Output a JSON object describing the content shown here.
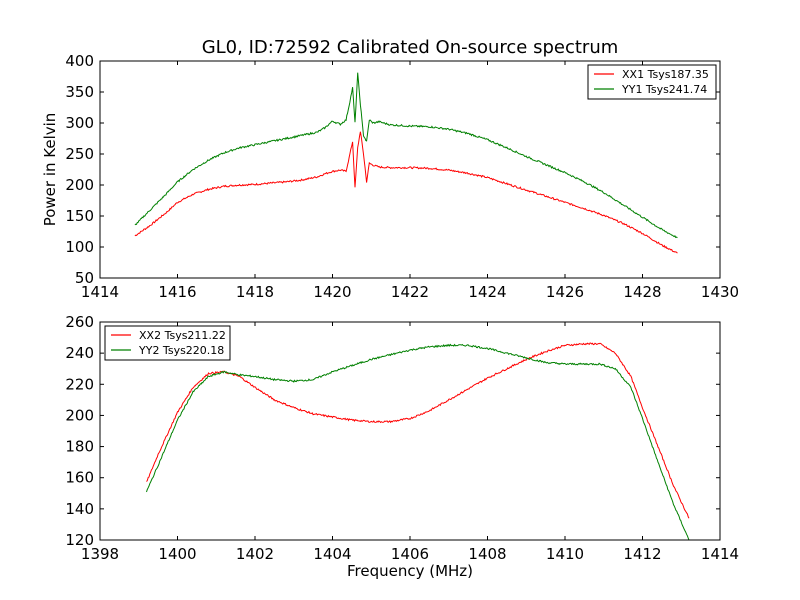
{
  "figure_title": "GL0, ID:72592 Calibrated On-source spectrum",
  "chart_data": [
    {
      "type": "line",
      "title": "GL0, ID:72592 Calibrated On-source spectrum",
      "xlabel": "",
      "ylabel": "Power in Kelvin",
      "xlim": [
        1414,
        1430
      ],
      "ylim": [
        50,
        400
      ],
      "xticks": [
        "1414",
        "1416",
        "1418",
        "1420",
        "1422",
        "1424",
        "1426",
        "1428",
        "1430"
      ],
      "yticks": [
        "50",
        "100",
        "150",
        "200",
        "250",
        "300",
        "350",
        "400"
      ],
      "legend_position": "top-right",
      "grid": false,
      "series": [
        {
          "name": "XX1 Tsys187.35",
          "color": "#ff0000",
          "x": [
            1414.9,
            1415.3,
            1415.7,
            1416.0,
            1416.4,
            1416.8,
            1417.2,
            1417.6,
            1418.0,
            1418.4,
            1418.8,
            1419.2,
            1419.6,
            1419.8,
            1420.0,
            1420.2,
            1420.35,
            1420.45,
            1420.52,
            1420.58,
            1420.65,
            1420.72,
            1420.8,
            1420.88,
            1420.95,
            1421.05,
            1421.2,
            1421.5,
            1422.0,
            1422.5,
            1423.0,
            1423.5,
            1424.0,
            1424.5,
            1425.0,
            1425.5,
            1426.0,
            1426.5,
            1427.0,
            1427.5,
            1428.0,
            1428.5,
            1428.9
          ],
          "y": [
            118,
            135,
            155,
            172,
            185,
            193,
            198,
            200,
            201,
            203,
            205,
            208,
            213,
            218,
            222,
            224,
            222,
            250,
            270,
            195,
            260,
            287,
            250,
            205,
            235,
            232,
            229,
            228,
            228,
            227,
            224,
            219,
            212,
            202,
            192,
            182,
            172,
            162,
            151,
            138,
            122,
            103,
            90
          ]
        },
        {
          "name": "YY1 Tsys241.74",
          "color": "#008000",
          "x": [
            1414.9,
            1415.3,
            1415.7,
            1416.0,
            1416.4,
            1416.8,
            1417.2,
            1417.6,
            1418.0,
            1418.4,
            1418.8,
            1419.2,
            1419.6,
            1419.8,
            1420.0,
            1420.2,
            1420.35,
            1420.45,
            1420.52,
            1420.58,
            1420.65,
            1420.72,
            1420.8,
            1420.88,
            1420.95,
            1421.05,
            1421.2,
            1421.5,
            1422.0,
            1422.5,
            1423.0,
            1423.5,
            1424.0,
            1424.5,
            1425.0,
            1425.5,
            1426.0,
            1426.5,
            1427.0,
            1427.5,
            1428.0,
            1428.5,
            1428.9
          ],
          "y": [
            135,
            160,
            185,
            205,
            225,
            240,
            252,
            260,
            265,
            270,
            275,
            280,
            285,
            292,
            303,
            298,
            305,
            335,
            357,
            300,
            380,
            330,
            280,
            270,
            305,
            300,
            302,
            297,
            295,
            294,
            290,
            283,
            273,
            260,
            246,
            233,
            220,
            205,
            188,
            168,
            148,
            128,
            115
          ]
        }
      ]
    },
    {
      "type": "line",
      "title": "",
      "xlabel": "Frequency (MHz)",
      "ylabel": "",
      "xlim": [
        1398,
        1414
      ],
      "ylim": [
        120,
        260
      ],
      "xticks": [
        "1398",
        "1400",
        "1402",
        "1404",
        "1406",
        "1408",
        "1410",
        "1412",
        "1414"
      ],
      "yticks": [
        "120",
        "140",
        "160",
        "180",
        "200",
        "220",
        "240",
        "260"
      ],
      "legend_position": "top-left",
      "grid": false,
      "series": [
        {
          "name": "XX2 Tsys211.22",
          "color": "#ff0000",
          "x": [
            1399.2,
            1399.5,
            1400.0,
            1400.4,
            1400.8,
            1401.2,
            1401.6,
            1402.0,
            1402.5,
            1403.0,
            1403.5,
            1404.0,
            1404.5,
            1405.0,
            1405.5,
            1406.0,
            1406.5,
            1407.0,
            1407.5,
            1408.0,
            1408.5,
            1409.0,
            1409.5,
            1410.0,
            1410.5,
            1410.9,
            1411.3,
            1411.7,
            1412.0,
            1412.4,
            1412.8,
            1413.2
          ],
          "y": [
            157,
            175,
            202,
            218,
            227,
            228,
            225,
            218,
            210,
            205,
            201,
            199,
            197,
            196,
            196,
            198,
            203,
            210,
            217,
            224,
            230,
            236,
            241,
            245,
            246,
            246,
            240,
            225,
            205,
            180,
            155,
            134
          ]
        },
        {
          "name": "YY2 Tsys220.18",
          "color": "#008000",
          "x": [
            1399.2,
            1399.5,
            1400.0,
            1400.4,
            1400.8,
            1401.2,
            1401.6,
            1402.0,
            1402.5,
            1403.0,
            1403.5,
            1404.0,
            1404.5,
            1405.0,
            1405.5,
            1406.0,
            1406.5,
            1407.0,
            1407.5,
            1408.0,
            1408.5,
            1409.0,
            1409.5,
            1410.0,
            1410.5,
            1410.9,
            1411.3,
            1411.7,
            1412.0,
            1412.4,
            1412.8,
            1413.2
          ],
          "y": [
            151,
            168,
            197,
            215,
            225,
            228,
            226,
            225,
            223,
            222,
            223,
            228,
            232,
            236,
            239,
            242,
            244,
            245,
            245,
            243,
            240,
            237,
            234,
            233,
            233,
            233,
            230,
            218,
            198,
            170,
            143,
            120
          ]
        }
      ]
    }
  ]
}
